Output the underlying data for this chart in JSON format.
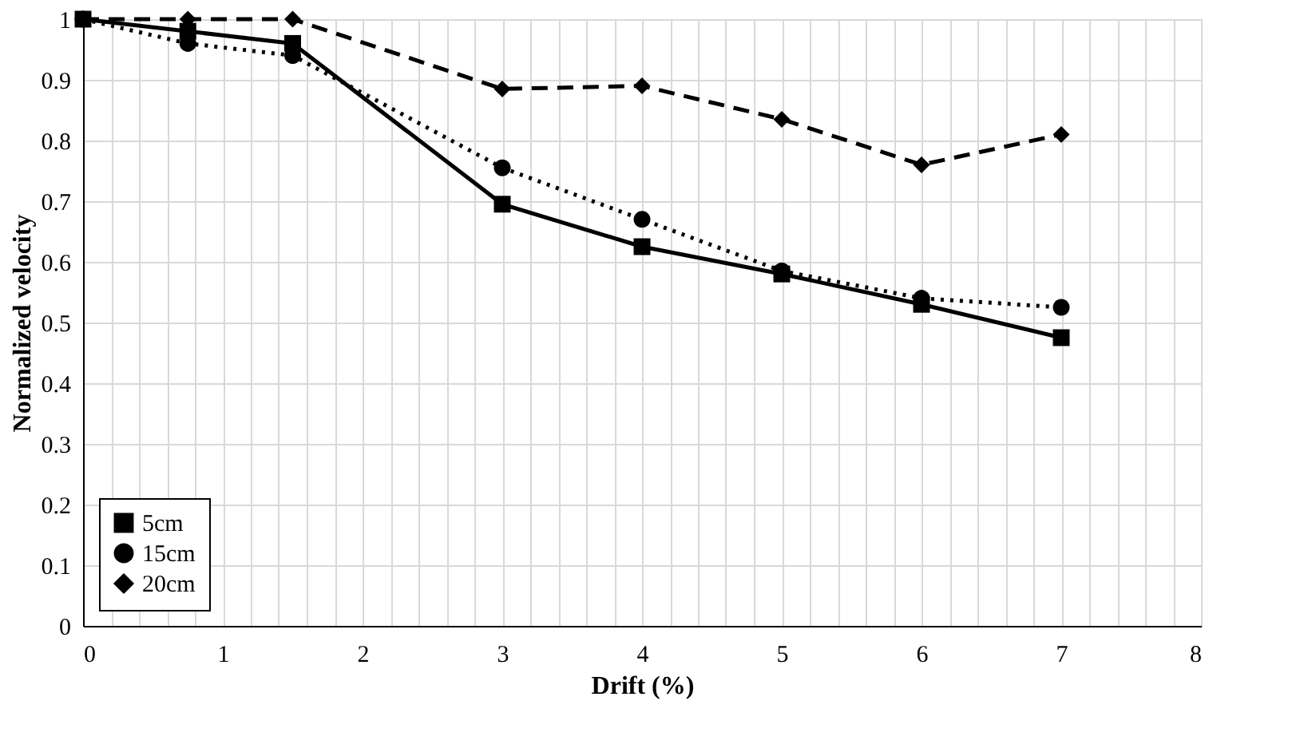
{
  "chart_data": {
    "type": "line",
    "xlabel": "Drift (%)",
    "ylabel": "Normalized  velocity",
    "x": [
      0,
      0.75,
      1.5,
      3,
      4,
      5,
      6,
      7
    ],
    "series": [
      {
        "name": "5cm",
        "color": "#000000",
        "marker": "square",
        "line_style": "solid",
        "values": [
          1.0,
          0.98,
          0.96,
          0.695,
          0.625,
          0.58,
          0.53,
          0.475
        ]
      },
      {
        "name": "15cm",
        "color": "#000000",
        "marker": "circle",
        "line_style": "dotted",
        "values": [
          1.0,
          0.96,
          0.94,
          0.755,
          0.67,
          0.585,
          0.54,
          0.525
        ]
      },
      {
        "name": "20cm",
        "color": "#000000",
        "marker": "diamond",
        "line_style": "dashed",
        "values": [
          1.0,
          1.0,
          1.0,
          0.885,
          0.89,
          0.835,
          0.76,
          0.81
        ]
      }
    ],
    "xlim": [
      0,
      8
    ],
    "xticks": [
      0,
      {
        "value": 0.2,
        "label": null
      },
      {
        "value": 0.4,
        "label": null
      },
      {
        "value": 0.6,
        "label": null
      },
      {
        "value": 0.8,
        "label": null
      },
      1,
      {
        "value": 1.2,
        "label": null
      },
      {
        "value": 1.4,
        "label": null
      },
      {
        "value": 1.6,
        "label": null
      },
      {
        "value": 1.8,
        "label": null
      },
      2,
      {
        "value": 2.2,
        "label": null
      },
      {
        "value": 2.4,
        "label": null
      },
      {
        "value": 2.6,
        "label": null
      },
      {
        "value": 2.8,
        "label": null
      },
      3,
      {
        "value": 3.2,
        "label": null
      },
      {
        "value": 3.4,
        "label": null
      },
      {
        "value": 3.6,
        "label": null
      },
      {
        "value": 3.8,
        "label": null
      },
      4,
      {
        "value": 4.2,
        "label": null
      },
      {
        "value": 4.4,
        "label": null
      },
      {
        "value": 4.6,
        "label": null
      },
      {
        "value": 4.8,
        "label": null
      },
      5,
      {
        "value": 5.2,
        "label": null
      },
      {
        "value": 5.4,
        "label": null
      },
      {
        "value": 5.6,
        "label": null
      },
      {
        "value": 5.8,
        "label": null
      },
      6,
      {
        "value": 6.2,
        "label": null
      },
      {
        "value": 6.4,
        "label": null
      },
      {
        "value": 6.6,
        "label": null
      },
      {
        "value": 6.8,
        "label": null
      },
      7,
      {
        "value": 7.2,
        "label": null
      },
      {
        "value": 7.4,
        "label": null
      },
      {
        "value": 7.6,
        "label": null
      },
      {
        "value": 7.8,
        "label": null
      },
      8
    ],
    "ylim": [
      0,
      1
    ],
    "yticks": [
      0,
      0.1,
      0.2,
      0.3,
      0.4,
      0.5,
      0.6,
      0.7,
      0.8,
      0.9,
      1
    ],
    "grid": true,
    "legend": "bottom left"
  }
}
